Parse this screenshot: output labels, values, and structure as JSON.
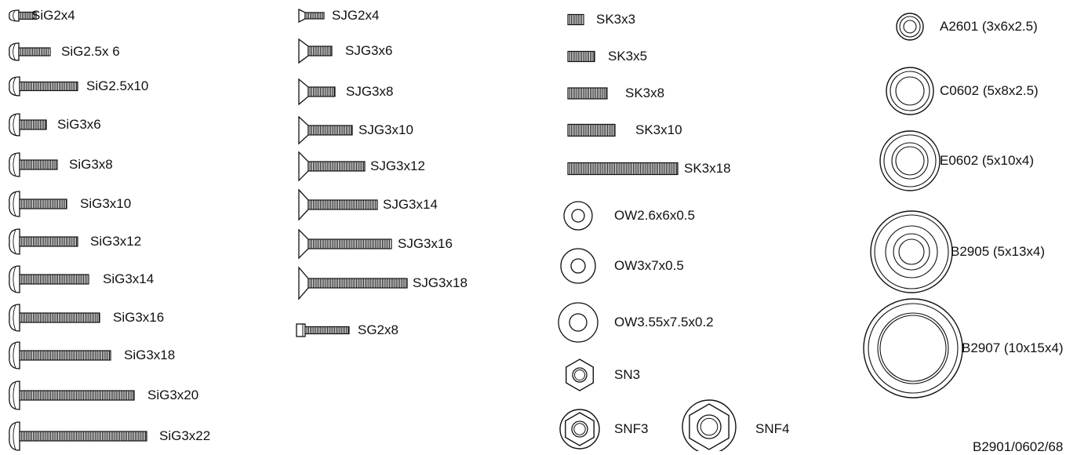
{
  "screw_column_1": [
    "SiG2x4",
    "SiG2.5x 6",
    "SiG2.5x10",
    "SiG3x6",
    "SiG3x8",
    "SiG3x10",
    "SiG3x12",
    "SiG3x14",
    "SiG3x16",
    "SiG3x18",
    "SiG3x20",
    "SiG3x22"
  ],
  "screw_column_2": [
    "SJG2x4",
    "SJG3x6",
    "SJG3x8",
    "SJG3x10",
    "SJG3x12",
    "SJG3x14",
    "SJG3x16",
    "SJG3x18",
    "SG2x8"
  ],
  "setscrew_column": [
    "SK3x3",
    "SK3x5",
    "SK3x8",
    "SK3x10",
    "SK3x18"
  ],
  "washers": [
    "OW2.6x6x0.5",
    "OW3x7x0.5",
    "OW3.55x7.5x0.2"
  ],
  "nuts": [
    "SN3",
    "SNF3",
    "SNF4"
  ],
  "bearings": [
    "A2601 (3x6x2.5)",
    "C0602 (5x8x2.5)",
    "E0602 (5x10x4)",
    "B2905 (5x13x4)",
    "B2907 (10x15x4)"
  ],
  "footer_code": "B2901/0602/68"
}
